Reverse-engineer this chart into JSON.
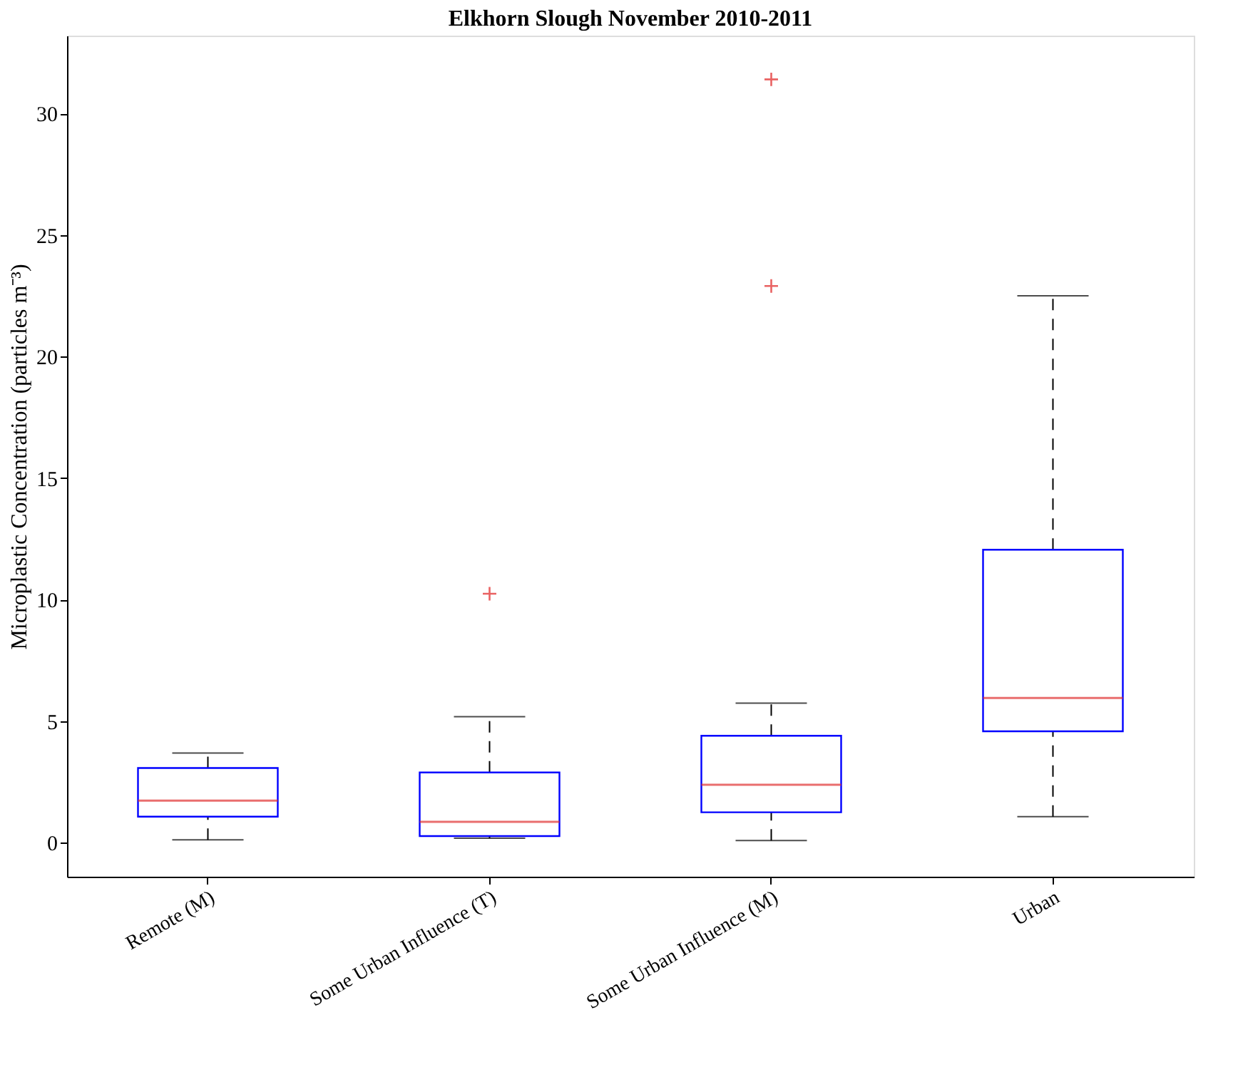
{
  "chart_data": {
    "type": "box",
    "title": "Elkhorn Slough November 2010-2011",
    "ylabel": "Microplastic Concentration (particles m⁻³)",
    "categories": [
      "Remote (M)",
      "Some Urban Influence (T)",
      "Some Urban Influence (M)",
      "Urban"
    ],
    "series": [
      {
        "color": "#0000ff",
        "boxes": [
          {
            "low": 0.12,
            "q1": 1.07,
            "median": 1.73,
            "q3": 3.07,
            "high": 3.69
          },
          {
            "low": 0.18,
            "q1": 0.27,
            "median": 0.86,
            "q3": 2.89,
            "high": 5.18,
            "outliers": [
              10.24
            ]
          },
          {
            "low": 0.09,
            "q1": 1.25,
            "median": 2.38,
            "q3": 4.4,
            "high": 5.74,
            "outliers": [
              22.9,
              31.4
            ]
          },
          {
            "low": 1.07,
            "q1": 4.58,
            "median": 5.95,
            "q3": 12.05,
            "high": 22.5
          }
        ]
      }
    ],
    "ylim": [
      -1.4,
      33.2
    ],
    "yticks": [
      0,
      5,
      10,
      15,
      20,
      25,
      30
    ],
    "grid": false,
    "marker": "cross",
    "line_style": "dashed"
  }
}
